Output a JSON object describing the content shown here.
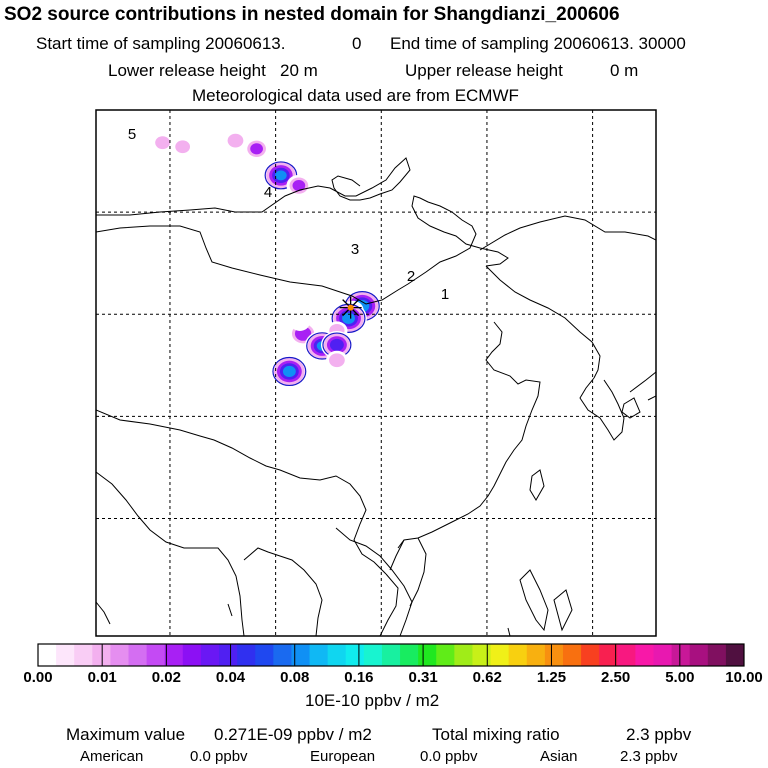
{
  "header": {
    "title": "SO2 source contributions in nested domain for Shangdianzi_200606",
    "start_label": "Start time of sampling 20060613.",
    "start_value": "0",
    "end_label": "End time of sampling 20060613. 30000",
    "lower_label": "Lower release height",
    "lower_value": "20 m",
    "upper_label": "Upper release height",
    "upper_value": "0 m",
    "met": "Meteorological data used are from ECMWF"
  },
  "map": {
    "region_labels": [
      "5",
      "4",
      "3",
      "2",
      "1"
    ],
    "colors": {
      "frame": "#000000",
      "grid": "#000000",
      "coast": "#000000",
      "station": "#ff8c00"
    }
  },
  "chart_data": {
    "type": "heatmap",
    "colorbar": {
      "ticks": [
        "0.00",
        "0.01",
        "0.02",
        "0.04",
        "0.08",
        "0.16",
        "0.31",
        "0.62",
        "1.25",
        "2.50",
        "5.00",
        "10.00"
      ],
      "unit_label": "10E-10 ppbv / m2",
      "colors": [
        "#ffffff",
        "#fde6fb",
        "#f9cdf5",
        "#f3b0ef",
        "#e58ef0",
        "#d46ef2",
        "#c44af4",
        "#a820f4",
        "#8c10f4",
        "#6a18f4",
        "#5020f2",
        "#3030f0",
        "#1f48f0",
        "#1a6af0",
        "#1090f4",
        "#10b8f4",
        "#10d6f0",
        "#10ecee",
        "#18f4d0",
        "#18f0a0",
        "#18ec60",
        "#20e820",
        "#60ec18",
        "#a0ec18",
        "#c8f018",
        "#f0f018",
        "#f8d010",
        "#f8b010",
        "#f89010",
        "#f87010",
        "#f84020",
        "#f82050",
        "#f81880",
        "#f818a8",
        "#e818b0",
        "#c81898",
        "#a81080",
        "#801060",
        "#501040"
      ]
    },
    "plumes": [
      {
        "lon": 118.2,
        "lat": 40.8,
        "value": 0.14
      },
      {
        "lon": 117.3,
        "lat": 40.4,
        "value": 0.012
      },
      {
        "lon": 116.9,
        "lat": 39.6,
        "value": 0.12
      },
      {
        "lon": 112.6,
        "lat": 38.1,
        "value": 0.035
      },
      {
        "lon": 115.8,
        "lat": 38.4,
        "value": 0.011
      },
      {
        "lon": 114.4,
        "lat": 36.9,
        "value": 0.09
      },
      {
        "lon": 115.8,
        "lat": 37.0,
        "value": 0.06
      },
      {
        "lon": 115.8,
        "lat": 35.5,
        "value": 0.012
      },
      {
        "lon": 111.3,
        "lat": 34.4,
        "value": 0.12
      },
      {
        "lon": 112.3,
        "lat": 39.2,
        "value": 0.008
      },
      {
        "lon": 110.5,
        "lat": 53.6,
        "value": 0.1
      },
      {
        "lon": 112.2,
        "lat": 52.6,
        "value": 0.02
      },
      {
        "lon": 99.3,
        "lat": 56.8,
        "value": 0.01
      },
      {
        "lon": 101.2,
        "lat": 56.4,
        "value": 0.01
      },
      {
        "lon": 106.2,
        "lat": 57.0,
        "value": 0.012
      },
      {
        "lon": 108.2,
        "lat": 56.2,
        "value": 0.02
      },
      {
        "lon": 107.2,
        "lat": 54.4,
        "value": 0.008
      },
      {
        "lon": 97.0,
        "lat": 56.2,
        "value": 0.004
      }
    ]
  },
  "footer": {
    "max_label": "Maximum value",
    "max_value": "0.271E-09 ppbv / m2",
    "total_label": "Total mixing ratio",
    "total_value": "2.3 ppbv",
    "american_label": "American",
    "american_value": "0.0 ppbv",
    "european_label": "European",
    "european_value": "0.0 ppbv",
    "asian_label": "Asian",
    "asian_value": "2.3 ppbv"
  }
}
